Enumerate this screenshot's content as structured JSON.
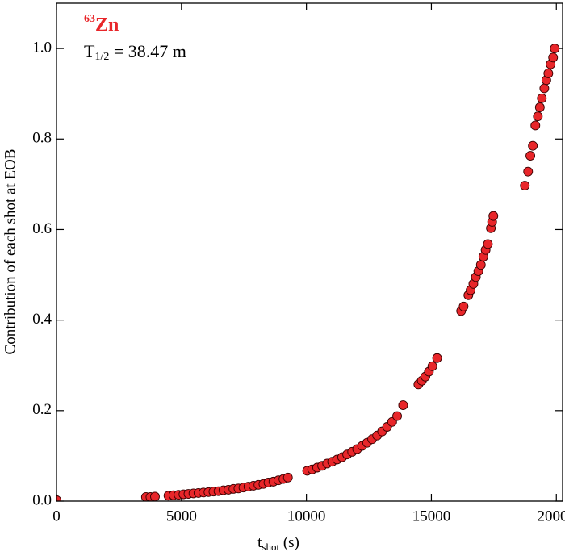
{
  "chart_data": {
    "type": "scatter",
    "annotation": {
      "mass_number": "63",
      "element": "Zn",
      "half_life_symbol": "T",
      "half_life_subscript": "1/2",
      "half_life_value": " = 38.47 m"
    },
    "xlabel": {
      "main": "t",
      "subscript": "shot",
      "unit": " (s)"
    },
    "ylabel": "Contribution of each shot at EOB",
    "color": "#e8262a",
    "x": [
      0,
      3580,
      3760,
      3940,
      4480,
      4680,
      4880,
      5080,
      5280,
      5480,
      5680,
      5880,
      6080,
      6280,
      6480,
      6680,
      6880,
      7080,
      7280,
      7480,
      7680,
      7880,
      8080,
      8280,
      8480,
      8680,
      8880,
      9080,
      9260,
      10030,
      10230,
      10430,
      10630,
      10830,
      11030,
      11230,
      11430,
      11630,
      11830,
      12030,
      12230,
      12430,
      12630,
      12830,
      13030,
      13230,
      13430,
      13630,
      13870,
      14480,
      14620,
      14760,
      14900,
      15040,
      15230,
      16190,
      16290,
      16480,
      16570,
      16680,
      16780,
      16880,
      16980,
      17080,
      17170,
      17260,
      17380,
      17430,
      17480,
      18740,
      18870,
      18960,
      19060,
      19160,
      19260,
      19340,
      19420,
      19520,
      19600,
      19680,
      19770,
      19870,
      19935
    ],
    "values": [
      0.002,
      0.009,
      0.009,
      0.01,
      0.012,
      0.013,
      0.014,
      0.015,
      0.016,
      0.017,
      0.018,
      0.019,
      0.02,
      0.021,
      0.022,
      0.024,
      0.025,
      0.027,
      0.028,
      0.03,
      0.032,
      0.034,
      0.036,
      0.038,
      0.041,
      0.043,
      0.046,
      0.049,
      0.052,
      0.067,
      0.07,
      0.074,
      0.078,
      0.083,
      0.087,
      0.092,
      0.097,
      0.103,
      0.109,
      0.115,
      0.122,
      0.129,
      0.137,
      0.145,
      0.154,
      0.164,
      0.175,
      0.188,
      0.212,
      0.258,
      0.266,
      0.275,
      0.286,
      0.298,
      0.316,
      0.42,
      0.43,
      0.455,
      0.466,
      0.48,
      0.495,
      0.508,
      0.522,
      0.54,
      0.555,
      0.568,
      0.603,
      0.617,
      0.63,
      0.697,
      0.728,
      0.763,
      0.785,
      0.83,
      0.85,
      0.87,
      0.89,
      0.912,
      0.93,
      0.945,
      0.965,
      0.98,
      1.0
    ],
    "xlim": [
      0,
      20250
    ],
    "ylim": [
      0,
      1.1
    ],
    "xticks": [
      0,
      5000,
      10000,
      15000,
      20000
    ],
    "yticks": [
      {
        "value": 0,
        "label": "0.0"
      },
      0.2,
      0.4,
      0.6,
      0.8,
      {
        "value": 1,
        "label": "1.0"
      }
    ]
  }
}
